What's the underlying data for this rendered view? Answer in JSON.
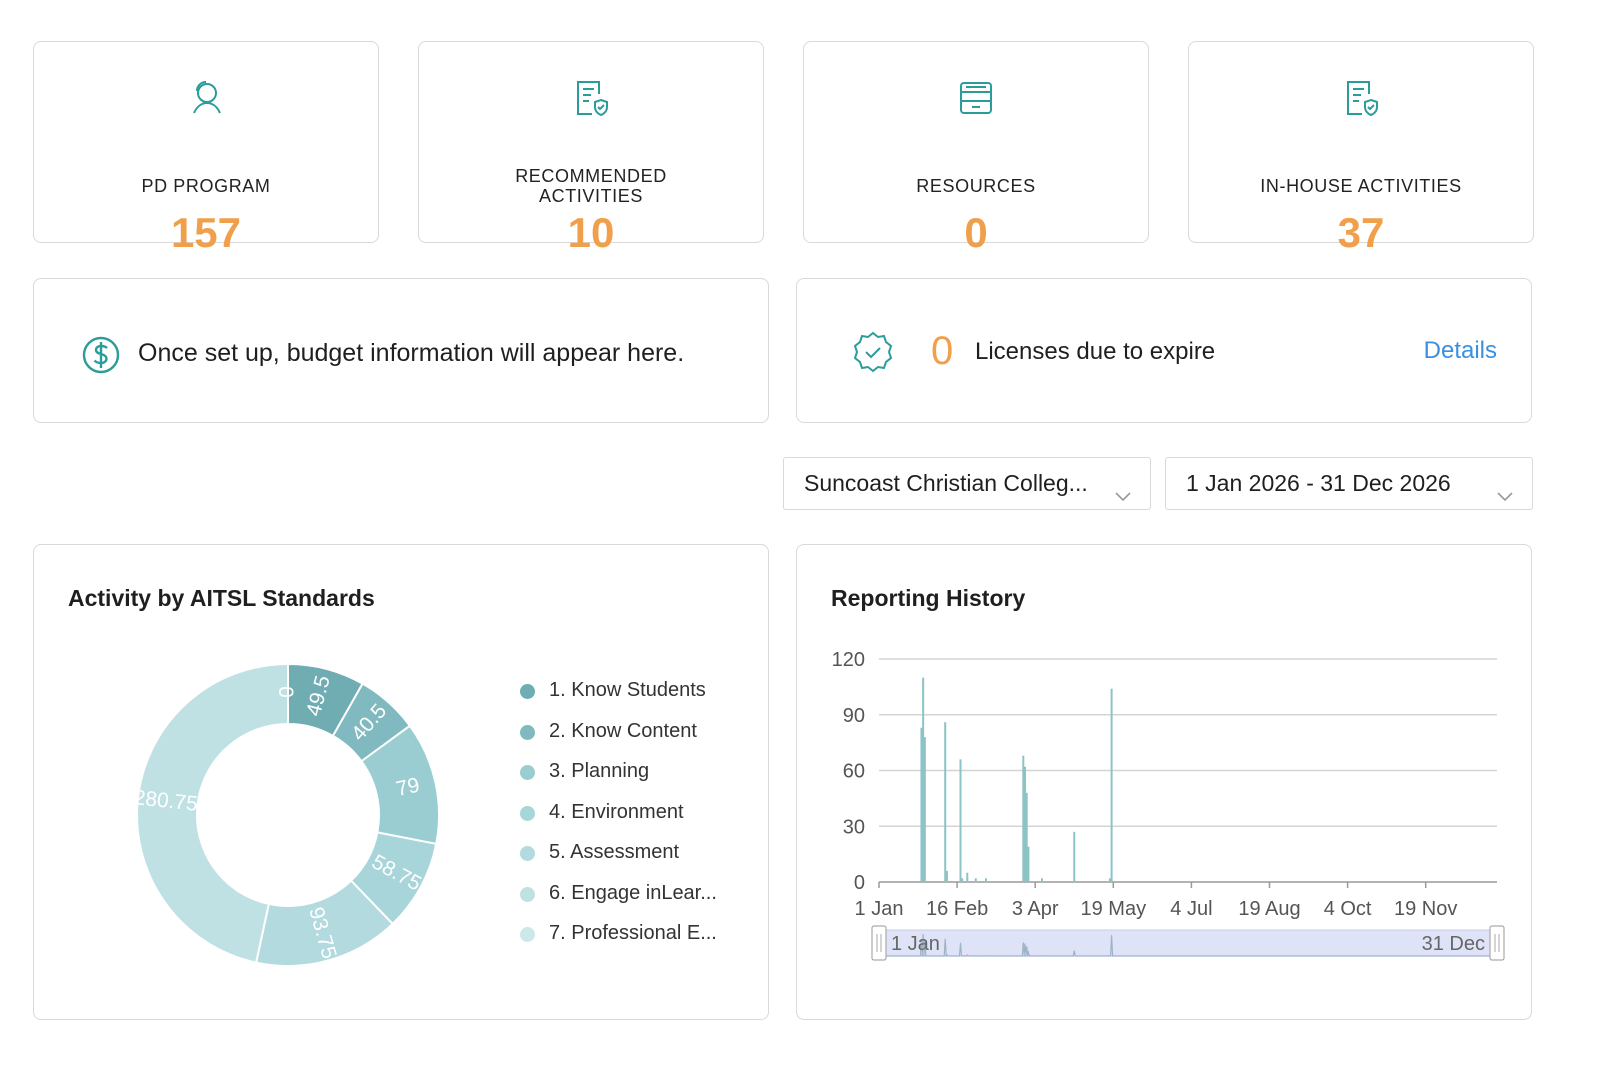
{
  "stats": [
    {
      "label_lines": [
        "PD PROGRAM"
      ],
      "value": "157",
      "icon": "user-icon"
    },
    {
      "label_lines": [
        "RECOMMENDED",
        "ACTIVITIES"
      ],
      "value": "10",
      "icon": "document-check-icon"
    },
    {
      "label_lines": [
        "RESOURCES"
      ],
      "value": "0",
      "icon": "archive-box-icon"
    },
    {
      "label_lines": [
        "IN-HOUSE ACTIVITIES"
      ],
      "value": "37",
      "icon": "document-check-icon"
    }
  ],
  "budget": {
    "text": "Once set up, budget information will appear here.",
    "icon": "dollar-icon"
  },
  "licenses": {
    "value": "0",
    "text": "Licenses due to expire",
    "details_label": "Details",
    "icon": "badge-check-icon"
  },
  "filters": {
    "school": "Suncoast Christian Colleg...",
    "date_range": "1 Jan 2026 - 31 Dec 2026"
  },
  "colors": {
    "accent_orange": "#f0a04b",
    "teal": "#2a9d9a",
    "link_blue": "#3a8fe0"
  },
  "aitsl": {
    "title": "Activity by AITSL Standards",
    "legend": [
      "1. Know Students",
      "2. Know Content",
      "3. Planning",
      "4. Environment",
      "5. Assessment",
      "6. Engage inLear...",
      "7. Professional E..."
    ]
  },
  "history": {
    "title": "Reporting History",
    "zoom_start_label": "1 Jan",
    "zoom_end_label": "31 Dec"
  },
  "chart_data": [
    {
      "type": "pie",
      "title": "Activity by AITSL Standards",
      "donut": true,
      "categories": [
        "1. Know Students",
        "2. Know Content",
        "3. Planning",
        "4. Environment",
        "5. Assessment",
        "6. Engage inLear...",
        "7. Professional E..."
      ],
      "values": [
        49.5,
        40.5,
        79,
        58.75,
        93.75,
        280.75,
        0
      ],
      "data_labels": [
        "49.5",
        "40.5",
        "79",
        "58.75",
        "93.75",
        "280.75",
        "0"
      ],
      "colors": [
        "#6fadb2",
        "#80bac0",
        "#9acdd2",
        "#a7d5d9",
        "#b3dadf",
        "#c0e1e4",
        "#cde8eb"
      ],
      "legend_position": "right"
    },
    {
      "type": "bar",
      "title": "Reporting History",
      "x_ticks": [
        "1 Jan",
        "16 Feb",
        "3 Apr",
        "19 May",
        "4 Jul",
        "19 Aug",
        "4 Oct",
        "19 Nov"
      ],
      "y_ticks": [
        "0",
        "30",
        "60",
        "90",
        "120"
      ],
      "ylim": [
        0,
        120
      ],
      "xlim": [
        "2026-01-01",
        "2026-12-31"
      ],
      "grid": true,
      "series_color": "#8cc3c6",
      "x": [
        "2026-01-26",
        "2026-01-27",
        "2026-01-28",
        "2026-02-09",
        "2026-02-10",
        "2026-02-18",
        "2026-02-19",
        "2026-02-22",
        "2026-02-27",
        "2026-03-05",
        "2026-03-27",
        "2026-03-28",
        "2026-03-29",
        "2026-03-30",
        "2026-04-07",
        "2026-04-26",
        "2026-05-17",
        "2026-05-18"
      ],
      "values": [
        83,
        110,
        78,
        86,
        6,
        66,
        2,
        5,
        2,
        2,
        68,
        62,
        48,
        19,
        2,
        27,
        2,
        104
      ]
    }
  ]
}
